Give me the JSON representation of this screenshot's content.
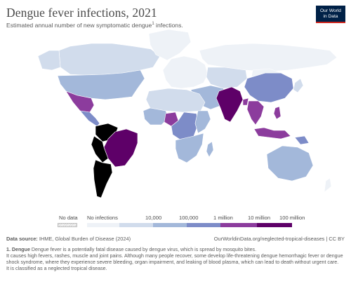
{
  "header": {
    "title": "Dengue fever infections, 2021",
    "subtitle_before": "Estimated annual number of new symptomatic dengue",
    "subtitle_sup": "1",
    "subtitle_after": " infections."
  },
  "logo": {
    "line1": "Our World",
    "line2": "in Data",
    "colors": {
      "background": "#002147",
      "accent": "#ce261e"
    }
  },
  "legend": {
    "no_data_label": "No data",
    "bins": [
      {
        "label": "No infections",
        "color": "#eef2f7"
      },
      {
        "label": "10,000",
        "color": "#d1dcec"
      },
      {
        "label": "100,000",
        "color": "#a3b8da"
      },
      {
        "label": "1 million",
        "color": "#7d8cc8"
      },
      {
        "label": "10 million",
        "color": "#8c3c9d"
      },
      {
        "label": "100 million",
        "color": "#5e0068"
      }
    ]
  },
  "footer": {
    "source_label": "Data source:",
    "source_text": " IHME, Global Burden of Disease (2024)",
    "url_text": "OurWorldinData.org/neglected-tropical-diseases | CC BY",
    "note_marker": "1. Dengue",
    "note_line1": " Dengue fever is a potentially fatal disease caused by dengue virus, which is spread by mosquito bites.",
    "note_line2": "It causes high fevers, rashes, muscle and joint pains. Although many people recover, some develop life-threatening dengue hemorrhagic fever or dengue shock syndrome, where they experience severe bleeding, organ impairment, and leaking of blood plasma, which can lead to death without urgent care.",
    "note_line3": "It is classified as a neglected tropical disease."
  },
  "map": {
    "regions": [
      {
        "name": "Canada",
        "bin": 1
      },
      {
        "name": "Alaska",
        "bin": 1
      },
      {
        "name": "Greenland",
        "bin": 0
      },
      {
        "name": "United States",
        "bin": 2
      },
      {
        "name": "Mexico",
        "bin": 4
      },
      {
        "name": "Central America",
        "bin": 3
      },
      {
        "name": "Colombia and Venezuela",
        "bin": 3
      },
      {
        "name": "Brazil",
        "bin": 5
      },
      {
        "name": "Peru and Bolivia",
        "bin": 3
      },
      {
        "name": "Argentina and Chile",
        "bin": 2
      },
      {
        "name": "Europe",
        "bin": 0
      },
      {
        "name": "Russia",
        "bin": 0
      },
      {
        "name": "Central Asia",
        "bin": 1
      },
      {
        "name": "Middle East",
        "bin": 2
      },
      {
        "name": "North Africa",
        "bin": 1
      },
      {
        "name": "West Africa",
        "bin": 2
      },
      {
        "name": "Nigeria",
        "bin": 4
      },
      {
        "name": "Central Africa",
        "bin": 3
      },
      {
        "name": "East Africa",
        "bin": 2
      },
      {
        "name": "Southern Africa",
        "bin": 2
      },
      {
        "name": "Madagascar",
        "bin": 2
      },
      {
        "name": "China",
        "bin": 3
      },
      {
        "name": "Mongolia",
        "bin": 0
      },
      {
        "name": "India",
        "bin": 5
      },
      {
        "name": "Bangladesh",
        "bin": 4
      },
      {
        "name": "Southeast Asia",
        "bin": 4
      },
      {
        "name": "Philippines",
        "bin": 4
      },
      {
        "name": "Indonesia",
        "bin": 4
      },
      {
        "name": "Japan",
        "bin": 1
      },
      {
        "name": "Australia",
        "bin": 2
      },
      {
        "name": "Papua New Guinea",
        "bin": 3
      },
      {
        "name": "New Zealand",
        "bin": 0
      }
    ]
  }
}
